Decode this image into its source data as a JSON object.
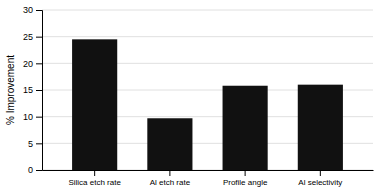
{
  "chart_data": {
    "type": "bar",
    "categories": [
      "Silica etch rate",
      "Al etch rate",
      "Profile angle",
      "Al selectivity"
    ],
    "values": [
      24.5,
      9.7,
      15.8,
      16.0
    ],
    "color": "#111111",
    "ylabel": "% Improvement",
    "ylim": [
      0,
      30
    ],
    "yticks": [
      0,
      5,
      10,
      15,
      20,
      25,
      30
    ],
    "grid": true
  }
}
